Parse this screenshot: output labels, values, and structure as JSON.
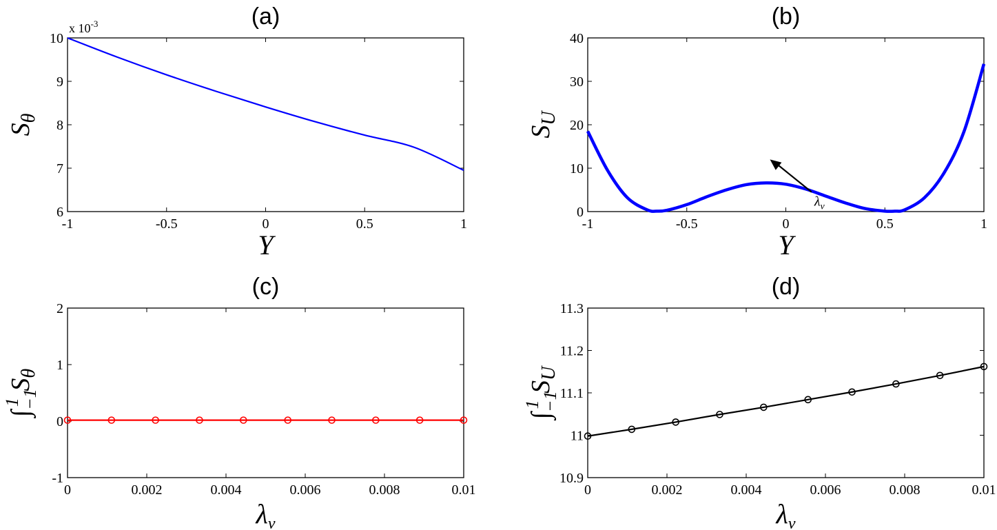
{
  "chart_data": [
    {
      "id": "a",
      "type": "line",
      "title": "(a)",
      "xlabel": "Y",
      "ylabel": {
        "main": "S",
        "sub": "θ"
      },
      "exponent_note": "x 10",
      "exponent_power": "-3",
      "xlim": [
        -1,
        1
      ],
      "ylim": [
        6,
        10
      ],
      "xticks": [
        -1,
        -0.5,
        0,
        0.5,
        1
      ],
      "yticks": [
        6,
        7,
        8,
        9,
        10
      ],
      "series": [
        {
          "name": "S_theta",
          "color": "#0000ff",
          "x": [
            -1,
            -0.75,
            -0.5,
            -0.25,
            0,
            0.25,
            0.5,
            0.75,
            1
          ],
          "y": [
            10.0,
            9.56,
            9.15,
            8.77,
            8.41,
            8.07,
            7.76,
            7.48,
            6.95
          ]
        }
      ]
    },
    {
      "id": "b",
      "type": "line",
      "title": "(b)",
      "xlabel": "Y",
      "ylabel": {
        "main": "S",
        "sub": "U"
      },
      "xlim": [
        -1,
        1
      ],
      "ylim": [
        0,
        40
      ],
      "xticks": [
        -1,
        -0.5,
        0,
        0.5,
        1
      ],
      "yticks": [
        0,
        10,
        20,
        30,
        40
      ],
      "annotation": {
        "main": "λ",
        "sub": "v",
        "arrow_from": [
          0.13,
          4.5
        ],
        "arrow_to": [
          -0.08,
          12
        ]
      },
      "series": [
        {
          "name": "S_U",
          "color": "#0000ff",
          "x": [
            -1,
            -0.9,
            -0.8,
            -0.7,
            -0.65,
            -0.6,
            -0.5,
            -0.4,
            -0.3,
            -0.2,
            -0.1,
            0,
            0.1,
            0.2,
            0.3,
            0.4,
            0.5,
            0.55,
            0.6,
            0.7,
            0.8,
            0.9,
            1
          ],
          "y": [
            18.5,
            9.5,
            3.2,
            0.4,
            0.1,
            0.3,
            1.6,
            3.4,
            5.0,
            6.2,
            6.6,
            6.3,
            5.2,
            3.6,
            2.0,
            0.7,
            0.1,
            0.1,
            0.4,
            3.2,
            9.0,
            18.5,
            34
          ]
        }
      ]
    },
    {
      "id": "c",
      "type": "line",
      "title": "(c)",
      "xlabel": {
        "main": "λ",
        "sub": "v"
      },
      "ylabel": {
        "integral": "∫",
        "upper": "1",
        "lower": "−1",
        "main": "S",
        "sub": "θ"
      },
      "xlim": [
        0,
        0.01
      ],
      "ylim": [
        -1,
        2
      ],
      "xticks": [
        "0",
        "0.002",
        "0.004",
        "0.006",
        "0.008",
        "0.01"
      ],
      "xtick_values": [
        0,
        0.002,
        0.004,
        0.006,
        0.008,
        0.01
      ],
      "yticks": [
        -1,
        0,
        1,
        2
      ],
      "series": [
        {
          "name": "int_S_theta",
          "color": "#ff0000",
          "marker": "circle",
          "x": [
            0,
            0.00111,
            0.00222,
            0.00333,
            0.00444,
            0.00556,
            0.00667,
            0.00778,
            0.00889,
            0.01
          ],
          "y": [
            0.0168,
            0.0168,
            0.0168,
            0.0168,
            0.0168,
            0.0168,
            0.0168,
            0.0168,
            0.0168,
            0.0168
          ]
        }
      ]
    },
    {
      "id": "d",
      "type": "line",
      "title": "(d)",
      "xlabel": {
        "main": "λ",
        "sub": "v"
      },
      "ylabel": {
        "integral": "∫",
        "upper": "1",
        "lower": "−1",
        "main": "S",
        "sub": "U"
      },
      "xlim": [
        0,
        0.01
      ],
      "ylim": [
        10.9,
        11.3
      ],
      "xticks": [
        "0",
        "0.002",
        "0.004",
        "0.006",
        "0.008",
        "0.01"
      ],
      "xtick_values": [
        0,
        0.002,
        0.004,
        0.006,
        0.008,
        0.01
      ],
      "yticks": [
        "10.9",
        "11",
        "11.1",
        "11.2",
        "11.3"
      ],
      "ytick_values": [
        10.9,
        11.0,
        11.1,
        11.2,
        11.3
      ],
      "series": [
        {
          "name": "int_S_U",
          "color": "#000000",
          "marker": "circle",
          "x": [
            0,
            0.00111,
            0.00222,
            0.00333,
            0.00444,
            0.00556,
            0.00667,
            0.00778,
            0.00889,
            0.01
          ],
          "y": [
            10.998,
            11.014,
            11.031,
            11.049,
            11.066,
            11.084,
            11.102,
            11.121,
            11.141,
            11.162
          ]
        }
      ]
    }
  ]
}
